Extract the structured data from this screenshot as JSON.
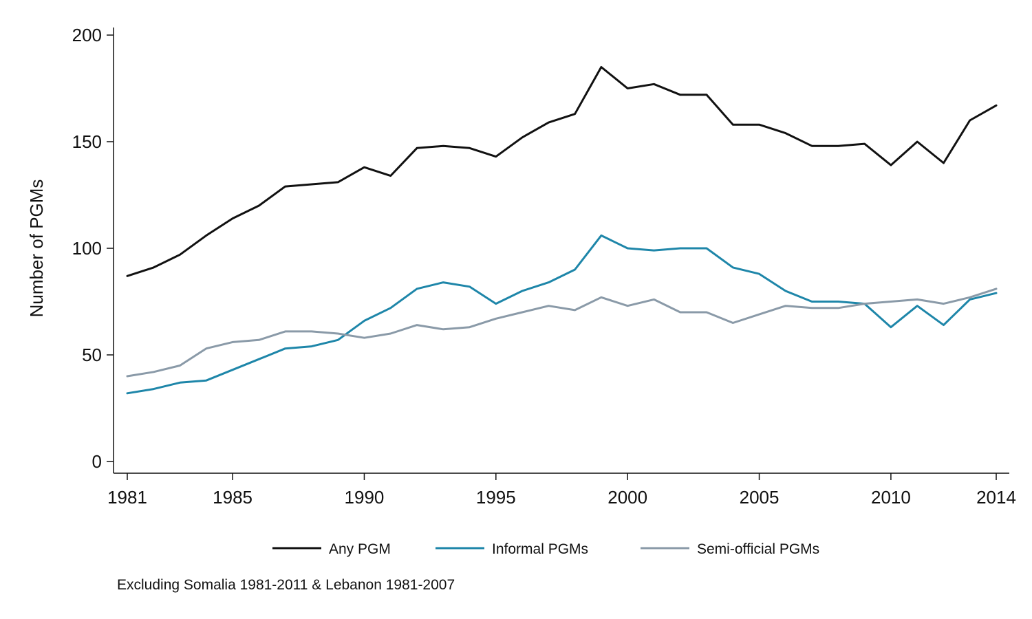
{
  "chart_data": {
    "type": "line",
    "title": "",
    "xlabel": "",
    "ylabel": "Number of PGMs",
    "xlim": [
      1981,
      2014
    ],
    "ylim": [
      0,
      200
    ],
    "x_ticks": [
      1981,
      1985,
      1990,
      1995,
      2000,
      2005,
      2010,
      2014
    ],
    "y_ticks": [
      0,
      50,
      100,
      150,
      200
    ],
    "grid": false,
    "legend_position": "bottom",
    "x": [
      1981,
      1982,
      1983,
      1984,
      1985,
      1986,
      1987,
      1988,
      1989,
      1990,
      1991,
      1992,
      1993,
      1994,
      1995,
      1996,
      1997,
      1998,
      1999,
      2000,
      2001,
      2002,
      2003,
      2004,
      2005,
      2006,
      2007,
      2008,
      2009,
      2010,
      2011,
      2012,
      2013,
      2014
    ],
    "series": [
      {
        "name": "Any PGM",
        "color": "#111111",
        "values": [
          87,
          91,
          97,
          106,
          114,
          120,
          129,
          130,
          131,
          138,
          134,
          147,
          148,
          147,
          143,
          152,
          159,
          163,
          185,
          175,
          177,
          172,
          172,
          158,
          158,
          154,
          148,
          148,
          149,
          139,
          150,
          140,
          160,
          167
        ]
      },
      {
        "name": "Informal PGMs",
        "color": "#1e86a9",
        "values": [
          32,
          34,
          37,
          38,
          43,
          48,
          53,
          54,
          57,
          66,
          72,
          81,
          84,
          82,
          74,
          80,
          84,
          90,
          106,
          100,
          99,
          100,
          100,
          91,
          88,
          80,
          75,
          75,
          74,
          63,
          73,
          64,
          76,
          79
        ]
      },
      {
        "name": "Semi-official PGMs",
        "color": "#8a9aa8",
        "values": [
          40,
          42,
          45,
          53,
          56,
          57,
          61,
          61,
          60,
          58,
          60,
          64,
          62,
          63,
          67,
          70,
          73,
          71,
          77,
          73,
          76,
          70,
          70,
          65,
          69,
          73,
          72,
          72,
          74,
          75,
          76,
          74,
          77,
          81
        ]
      }
    ],
    "note": "Excluding Somalia 1981-2011 & Lebanon 1981-2007"
  }
}
